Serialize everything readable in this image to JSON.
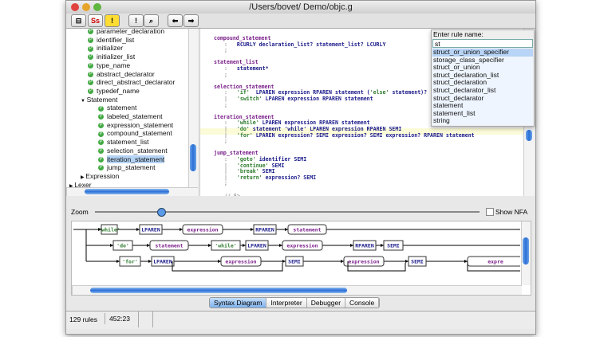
{
  "window": {
    "title": "/Users/bovet/ Demo/objc.g"
  },
  "toolbar": {
    "buttons": [
      {
        "icon": "tree-icon"
      },
      {
        "icon": "syntax-icon",
        "label": "Ss"
      },
      {
        "icon": "warning-icon",
        "label": "!"
      },
      {
        "icon": "ambiguity-icon",
        "label": "!"
      },
      {
        "icon": "find-icon"
      },
      {
        "icon": "back-arrow-icon"
      },
      {
        "icon": "forward-arrow-icon"
      }
    ]
  },
  "tree": {
    "items": [
      {
        "label": "parameter_declaration",
        "level": 2
      },
      {
        "label": "identifier_list",
        "level": 2
      },
      {
        "label": "initializer",
        "level": 2
      },
      {
        "label": "initializer_list",
        "level": 2
      },
      {
        "label": "type_name",
        "level": 2
      },
      {
        "label": "abstract_declarator",
        "level": 2
      },
      {
        "label": "direct_abstract_declarator",
        "level": 2
      },
      {
        "label": "typedef_name",
        "level": 2
      },
      {
        "label": "Statement",
        "level": 1,
        "group": true,
        "expanded": true
      },
      {
        "label": "statement",
        "level": 2
      },
      {
        "label": "labeled_statement",
        "level": 2
      },
      {
        "label": "expression_statement",
        "level": 2
      },
      {
        "label": "compound_statement",
        "level": 2
      },
      {
        "label": "statement_list",
        "level": 2
      },
      {
        "label": "selection_statement",
        "level": 2
      },
      {
        "label": "iteration_statement",
        "level": 2,
        "selected": true
      },
      {
        "label": "jump_statement",
        "level": 2
      },
      {
        "label": "Expression",
        "level": 1,
        "group": true,
        "expanded": false
      },
      {
        "label": "Lexer",
        "level": 0,
        "group": true,
        "expanded": false
      }
    ]
  },
  "editor": {
    "lines": [
      [
        [
          "rule",
          "compound_statement"
        ]
      ],
      [
        [
          "gut",
          ":   "
        ],
        [
          "",
          "RCURLY declaration_list? statement_list? LCURLY"
        ]
      ],
      [
        [
          "gut",
          ";"
        ]
      ],
      [],
      [
        [
          "rule",
          "statement_list"
        ]
      ],
      [
        [
          "gut",
          ":   "
        ],
        [
          "",
          "statement*"
        ]
      ],
      [
        [
          "gut",
          ";"
        ]
      ],
      [],
      [
        [
          "rule",
          "selection_statement"
        ]
      ],
      [
        [
          "gut",
          ":   "
        ],
        [
          "str",
          "'if'"
        ],
        [
          "",
          "  LPAREN expression RPAREN statement ("
        ],
        [
          "str",
          "'else'"
        ],
        [
          "",
          " statement)?"
        ]
      ],
      [
        [
          "gut",
          "|   "
        ],
        [
          "str",
          "'switch'"
        ],
        [
          "",
          " LPAREN expression RPAREN statement"
        ]
      ],
      [
        [
          "gut",
          ";"
        ]
      ],
      [],
      [
        [
          "rule",
          "iteration_statement"
        ]
      ],
      [
        [
          "gut",
          ":   "
        ],
        [
          "str",
          "'while'"
        ],
        [
          "",
          " LPAREN expression RPAREN statement"
        ]
      ],
      [
        [
          "gut",
          "|   "
        ],
        [
          "str",
          "'do'"
        ],
        [
          "",
          " statement 'while' LPAREN expression RPAREN SEMI"
        ]
      ],
      [
        [
          "gut",
          "|   "
        ],
        [
          "str",
          "'for'"
        ],
        [
          "",
          " LPAREN expression? SEMI expression? SEMI expression? RPAREN statement"
        ]
      ],
      [
        [
          "gut",
          ";"
        ]
      ],
      [],
      [
        [
          "rule",
          "jump_statement"
        ]
      ],
      [
        [
          "gut",
          ":   "
        ],
        [
          "str",
          "'goto'"
        ],
        [
          "",
          " identifier SEMI"
        ]
      ],
      [
        [
          "gut",
          "|   "
        ],
        [
          "str",
          "'continue'"
        ],
        [
          "",
          " SEMI"
        ]
      ],
      [
        [
          "gut",
          "|   "
        ],
        [
          "str",
          "'break'"
        ],
        [
          "",
          " SEMI"
        ]
      ],
      [
        [
          "gut",
          "|   "
        ],
        [
          "str",
          "'return'"
        ],
        [
          "",
          " expression? SEMI"
        ]
      ],
      [
        [
          "gut",
          ";"
        ]
      ],
      [],
      [
        [
          "gut",
          "// $>"
        ]
      ]
    ]
  },
  "popup": {
    "title": "Enter rule name:",
    "value": "st",
    "items": [
      "struct_or_union_specifier",
      "storage_class_specifier",
      "struct_or_union",
      "struct_declaration_list",
      "struct_declaration",
      "struct_declarator_list",
      "struct_declarator",
      "statement",
      "statement_list",
      "string"
    ],
    "selected_index": 0
  },
  "diagram_panel": {
    "zoom_label": "Zoom",
    "zoom_value": 0.17,
    "show_nfa_label": "Show NFA",
    "show_nfa_checked": false,
    "nodes": [
      {
        "label": "'while'",
        "kind": "literal"
      },
      {
        "label": "LPAREN",
        "kind": "token"
      },
      {
        "label": "expression",
        "kind": "rule"
      },
      {
        "label": "RPAREN",
        "kind": "token"
      },
      {
        "label": "statement",
        "kind": "rule"
      },
      {
        "label": "'do'",
        "kind": "literal"
      },
      {
        "label": "statement",
        "kind": "rule"
      },
      {
        "label": "'while'",
        "kind": "literal"
      },
      {
        "label": "LPAREN",
        "kind": "token"
      },
      {
        "label": "expression",
        "kind": "rule"
      },
      {
        "label": "RPAREN",
        "kind": "token"
      },
      {
        "label": "SEMI",
        "kind": "token"
      },
      {
        "label": "'for'",
        "kind": "literal"
      },
      {
        "label": "LPAREN",
        "kind": "token"
      },
      {
        "label": "expression",
        "kind": "rule"
      },
      {
        "label": "SEMI",
        "kind": "token"
      },
      {
        "label": "expression",
        "kind": "rule"
      },
      {
        "label": "SEMI",
        "kind": "token"
      },
      {
        "label": "expre",
        "kind": "rule"
      }
    ]
  },
  "tabs": [
    {
      "label": "Syntax Diagram",
      "active": true
    },
    {
      "label": "Interpreter"
    },
    {
      "label": "Debugger"
    },
    {
      "label": "Console"
    }
  ],
  "status": {
    "rules": "129 rules",
    "position": "452:23"
  },
  "colors": {
    "rule": "#7a1f8a",
    "token": "#1a1a8a",
    "literal": "#2a7a2a",
    "selection": "#b8d4f6",
    "accent": "#2a6fd6"
  }
}
